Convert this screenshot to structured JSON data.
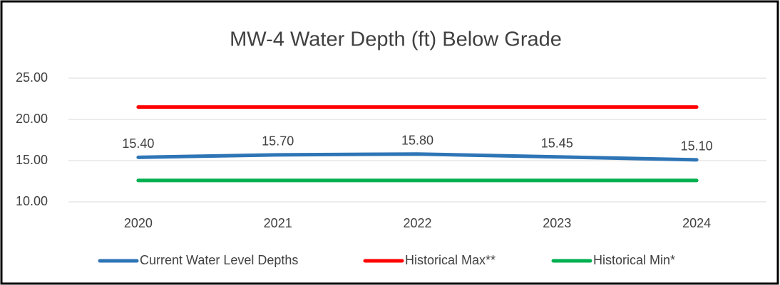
{
  "chart_data": {
    "type": "line",
    "title": "MW-4 Water Depth (ft) Below Grade",
    "categories": [
      "2020",
      "2021",
      "2022",
      "2023",
      "2024"
    ],
    "series": [
      {
        "name": "Current Water Level Depths",
        "color": "#2e75b6",
        "values": [
          15.4,
          15.7,
          15.8,
          15.45,
          15.1
        ],
        "value_labels": [
          "15.40",
          "15.70",
          "15.80",
          "15.45",
          "15.10"
        ]
      },
      {
        "name": "Historical Max**",
        "color": "#ff0000",
        "values": [
          21.5,
          21.5,
          21.5,
          21.5,
          21.5
        ]
      },
      {
        "name": "Historical Min*",
        "color": "#00b050",
        "values": [
          12.6,
          12.6,
          12.6,
          12.6,
          12.6
        ]
      }
    ],
    "ylim": [
      10,
      25
    ],
    "yticks": [
      {
        "value": 10,
        "label": "10.00"
      },
      {
        "value": 15,
        "label": "15.00"
      },
      {
        "value": 20,
        "label": "20.00"
      },
      {
        "value": 25,
        "label": "25.00"
      }
    ],
    "grid": true,
    "legend": "bottom"
  }
}
